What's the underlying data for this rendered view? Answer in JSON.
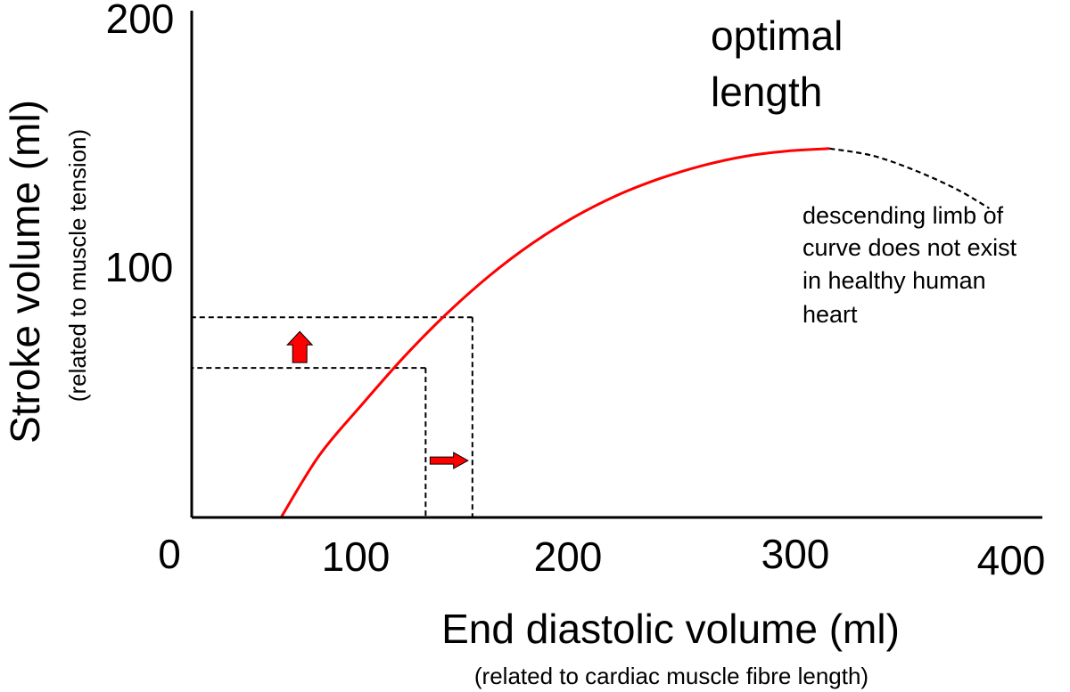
{
  "chart_data": {
    "type": "line",
    "title": "",
    "xlabel": "End diastolic volume (ml)",
    "xlabel_sub": "(related to cardiac muscle fibre length)",
    "ylabel": "Stroke volume (ml)",
    "ylabel_sub": "(related to muscle tension)",
    "xlim": [
      0,
      400
    ],
    "ylim": [
      0,
      200
    ],
    "x_ticks": [
      "0",
      "100",
      "200",
      "300",
      "400"
    ],
    "y_ticks": [
      "100",
      "200"
    ],
    "grid": false,
    "series": [
      {
        "style": "solid",
        "color": "#ff0000",
        "x": [
          42,
          60,
          80,
          100,
          120,
          140,
          160,
          180,
          200,
          220,
          240,
          260,
          280,
          300
        ],
        "y": [
          0,
          24.5,
          44.5,
          63.5,
          80.5,
          95.4,
          108.1,
          118.6,
          127.1,
          133.7,
          138.8,
          142.5,
          144.6,
          145.6
        ]
      },
      {
        "style": "dashed",
        "color": "#000000",
        "x": [
          300,
          320,
          340,
          360,
          375
        ],
        "y": [
          145.6,
          142.8,
          137.0,
          129.4,
          122.0
        ]
      }
    ],
    "reference_lines": [
      {
        "x": 110,
        "y": 59
      },
      {
        "x": 132,
        "y": 79
      }
    ],
    "arrows": [
      {
        "direction": "up",
        "color": "#ff0000"
      },
      {
        "direction": "right",
        "color": "#ff0000"
      }
    ],
    "annotations": [
      {
        "lines": [
          "optimal",
          "length"
        ]
      },
      {
        "lines": [
          "descending limb of",
          "curve does not exist",
          "in healthy human",
          "heart"
        ]
      }
    ]
  }
}
